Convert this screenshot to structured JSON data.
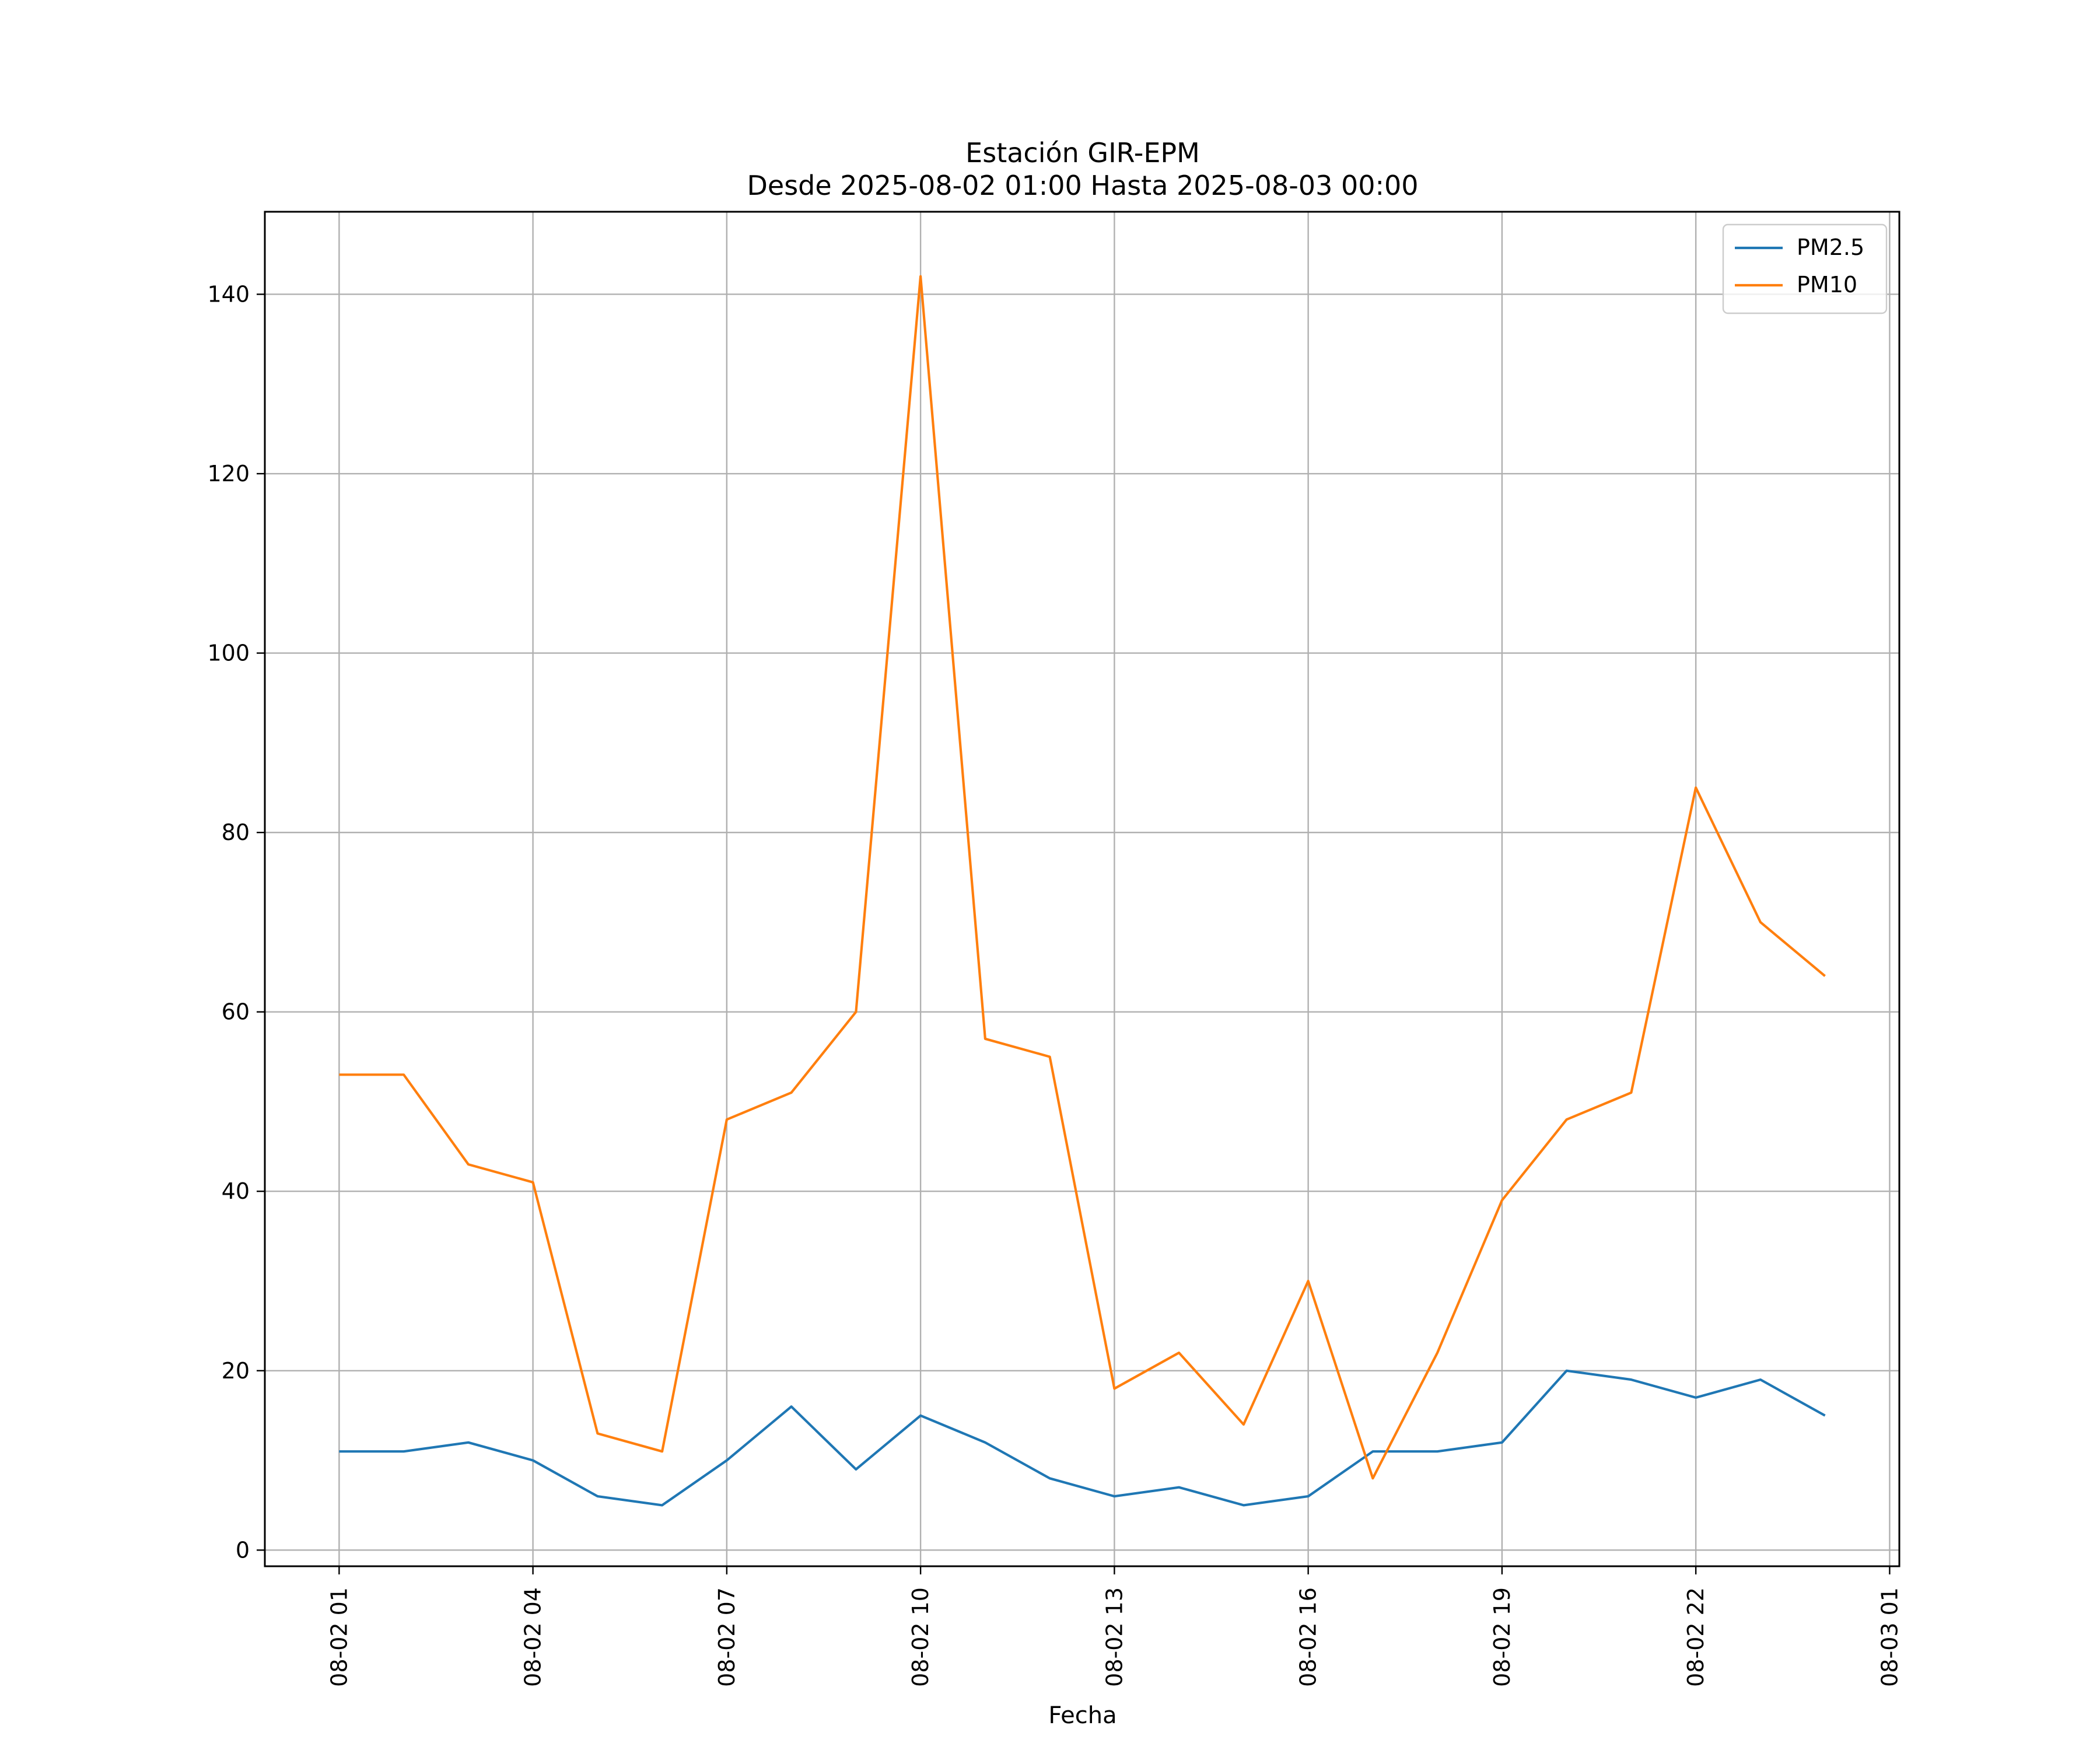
{
  "chart_data": {
    "type": "line",
    "title": "Estación GIR-EPM",
    "subtitle": "Desde 2025-08-02 01:00 Hasta 2025-08-03 00:00",
    "xlabel": "Fecha",
    "ylabel": "",
    "x": [
      "2025-08-02 01:00",
      "2025-08-02 02:00",
      "2025-08-02 03:00",
      "2025-08-02 04:00",
      "2025-08-02 05:00",
      "2025-08-02 06:00",
      "2025-08-02 07:00",
      "2025-08-02 08:00",
      "2025-08-02 09:00",
      "2025-08-02 10:00",
      "2025-08-02 11:00",
      "2025-08-02 12:00",
      "2025-08-02 13:00",
      "2025-08-02 14:00",
      "2025-08-02 15:00",
      "2025-08-02 16:00",
      "2025-08-02 17:00",
      "2025-08-02 18:00",
      "2025-08-02 19:00",
      "2025-08-02 20:00",
      "2025-08-02 21:00",
      "2025-08-02 22:00",
      "2025-08-02 23:00",
      "2025-08-03 00:00"
    ],
    "x_ticks": [
      {
        "value": "2025-08-02 01:00",
        "label": "08-02 01"
      },
      {
        "value": "2025-08-02 04:00",
        "label": "08-02 04"
      },
      {
        "value": "2025-08-02 07:00",
        "label": "08-02 07"
      },
      {
        "value": "2025-08-02 10:00",
        "label": "08-02 10"
      },
      {
        "value": "2025-08-02 13:00",
        "label": "08-02 13"
      },
      {
        "value": "2025-08-02 16:00",
        "label": "08-02 16"
      },
      {
        "value": "2025-08-02 19:00",
        "label": "08-02 19"
      },
      {
        "value": "2025-08-02 22:00",
        "label": "08-02 22"
      },
      {
        "value": "2025-08-03 01:00",
        "label": "08-03 01"
      }
    ],
    "xlim": [
      "2025-08-01 23:51",
      "2025-08-03 01:09"
    ],
    "ylim": [
      -1.8,
      149.2
    ],
    "y_ticks": [
      0,
      20,
      40,
      60,
      80,
      100,
      120,
      140
    ],
    "grid": true,
    "legend_position": "top-right",
    "series": [
      {
        "name": "PM2.5",
        "color": "#1f77b4",
        "values": [
          11,
          11,
          12,
          10,
          6,
          5,
          10,
          16,
          9,
          15,
          12,
          8,
          6,
          7,
          5,
          6,
          11,
          11,
          12,
          20,
          19,
          17,
          19,
          15
        ]
      },
      {
        "name": "PM10",
        "color": "#ff7f0e",
        "values": [
          53,
          53,
          43,
          41,
          13,
          11,
          48,
          51,
          60,
          142,
          57,
          55,
          18,
          22,
          14,
          30,
          8,
          22,
          39,
          48,
          51,
          85,
          70,
          64
        ]
      }
    ]
  }
}
